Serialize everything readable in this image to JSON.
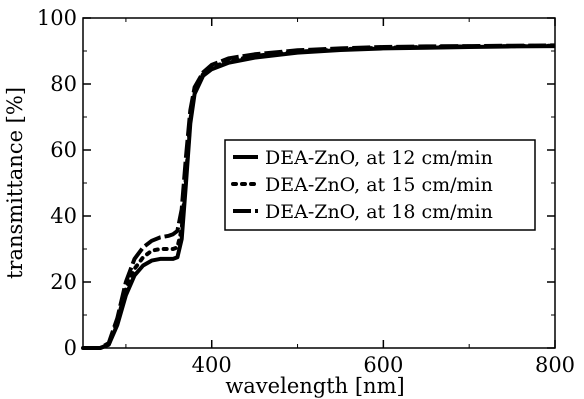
{
  "chart_data": {
    "type": "line",
    "xlabel": "wavelength [nm]",
    "ylabel": "transmittance [%]",
    "xlim": [
      250,
      800
    ],
    "ylim": [
      0,
      100
    ],
    "x_ticks": [
      "400",
      "600",
      "800"
    ],
    "y_ticks": [
      "0",
      "20",
      "40",
      "60",
      "80",
      "100"
    ],
    "grid": false,
    "legend_position": "center-right",
    "series": [
      {
        "name": "DEA-ZnO, at 12 cm/min",
        "style": "solid",
        "color": "#000000",
        "x": [
          250,
          270,
          280,
          290,
          300,
          310,
          320,
          330,
          340,
          350,
          355,
          360,
          365,
          370,
          375,
          380,
          390,
          400,
          420,
          450,
          500,
          550,
          600,
          650,
          700,
          750,
          800
        ],
        "y": [
          0,
          0,
          1,
          7,
          16,
          22,
          25,
          26.5,
          27,
          27,
          27,
          27.5,
          33,
          50,
          68,
          77,
          82.5,
          84.5,
          86.5,
          88,
          89.5,
          90.3,
          90.8,
          91,
          91.2,
          91.4,
          91.5
        ]
      },
      {
        "name": "DEA-ZnO, at 15 cm/min",
        "style": "dotted",
        "color": "#000000",
        "x": [
          250,
          270,
          280,
          290,
          300,
          310,
          320,
          330,
          340,
          350,
          355,
          360,
          365,
          370,
          375,
          380,
          390,
          400,
          420,
          450,
          500,
          550,
          600,
          650,
          700,
          750,
          800
        ],
        "y": [
          0,
          0,
          1,
          8,
          18,
          24,
          27.5,
          29.5,
          30,
          30,
          30,
          30.5,
          36,
          52,
          69,
          78,
          83,
          85,
          87,
          88.5,
          89.8,
          90.5,
          91,
          91.2,
          91.4,
          91.5,
          91.6
        ]
      },
      {
        "name": "DEA-ZnO, at 18 cm/min",
        "style": "dash",
        "color": "#000000",
        "x": [
          250,
          270,
          280,
          290,
          300,
          310,
          320,
          330,
          340,
          350,
          355,
          360,
          365,
          370,
          375,
          380,
          390,
          400,
          420,
          450,
          500,
          550,
          600,
          650,
          700,
          750,
          800
        ],
        "y": [
          0,
          0,
          1.5,
          9,
          20,
          27,
          30.5,
          32.5,
          33.5,
          34,
          34.5,
          35.5,
          42,
          58,
          72,
          79,
          83.5,
          85.8,
          87.8,
          89,
          90.2,
          90.8,
          91.2,
          91.4,
          91.5,
          91.6,
          91.7
        ]
      }
    ]
  }
}
